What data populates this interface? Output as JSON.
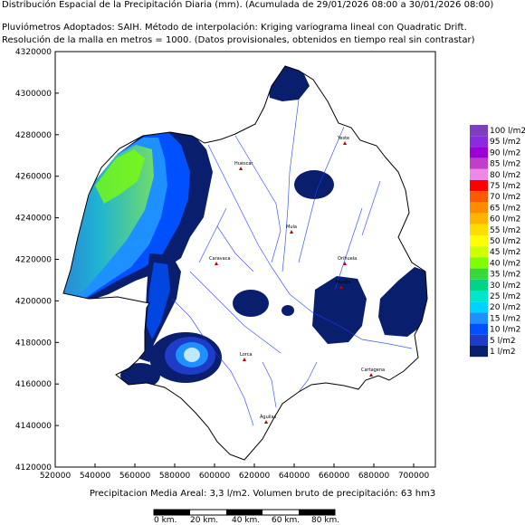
{
  "header": {
    "line1": "Distribución Espacial de la Precipitación Diaria (mm). (Acumulada de 29/01/2026 08:00 a 30/01/2026 08:00)",
    "line2": "Pluviómetros Adoptados: SAIH.  Método de interpolación: Kriging variograma lineal con Quadratic Drift.",
    "line3": "Resolución de la malla en metros = 1000. (Datos provisionales, obtenidos en tiempo real sin contrastar)"
  },
  "y_ticks": [
    "4320000",
    "4300000",
    "4280000",
    "4260000",
    "4240000",
    "4220000",
    "4200000",
    "4180000",
    "4160000",
    "4140000",
    "4120000"
  ],
  "x_ticks": [
    "520000",
    "540000",
    "560000",
    "580000",
    "600000",
    "620000",
    "640000",
    "660000",
    "680000",
    "700000"
  ],
  "legend": [
    {
      "label": "100 l/m2",
      "color": "#7e3fbf"
    },
    {
      "label": "95 l/m2",
      "color": "#8a2be2"
    },
    {
      "label": "90 l/m2",
      "color": "#9b00d6"
    },
    {
      "label": "85 l/m2",
      "color": "#c03fc6"
    },
    {
      "label": "80 l/m2",
      "color": "#ee88e6"
    },
    {
      "label": "75 l/m2",
      "color": "#ff0000"
    },
    {
      "label": "70 l/m2",
      "color": "#ff5a00"
    },
    {
      "label": "65 l/m2",
      "color": "#ff8c00"
    },
    {
      "label": "60 l/m2",
      "color": "#ffb400"
    },
    {
      "label": "55 l/m2",
      "color": "#ffdc00"
    },
    {
      "label": "50 l/m2",
      "color": "#ffff00"
    },
    {
      "label": "45 l/m2",
      "color": "#cfff00"
    },
    {
      "label": "40 l/m2",
      "color": "#7fff00"
    },
    {
      "label": "35 l/m2",
      "color": "#38d938"
    },
    {
      "label": "30 l/m2",
      "color": "#00d48a"
    },
    {
      "label": "25 l/m2",
      "color": "#00e6c8"
    },
    {
      "label": "20 l/m2",
      "color": "#00d2ff"
    },
    {
      "label": "15 l/m2",
      "color": "#1e90ff"
    },
    {
      "label": "10 l/m2",
      "color": "#0050ff"
    },
    {
      "label": "5 l/m2",
      "color": "#1e3cc8"
    },
    {
      "label": "1 l/m2",
      "color": "#0a1e6e"
    }
  ],
  "towns": [
    "Yeste",
    "Huéscar",
    "Caravaca",
    "Mula",
    "Orihuela",
    "Murcia",
    "Lorca",
    "Cartagena",
    "Águilas"
  ],
  "footer": {
    "stats": "Precipitacion Media Areal: 3,3 l/m2. Volumen bruto de precipitación: 63 hm3"
  },
  "scale": [
    "0 km.",
    "20 km.",
    "40 km.",
    "60 km.",
    "80 km."
  ]
}
